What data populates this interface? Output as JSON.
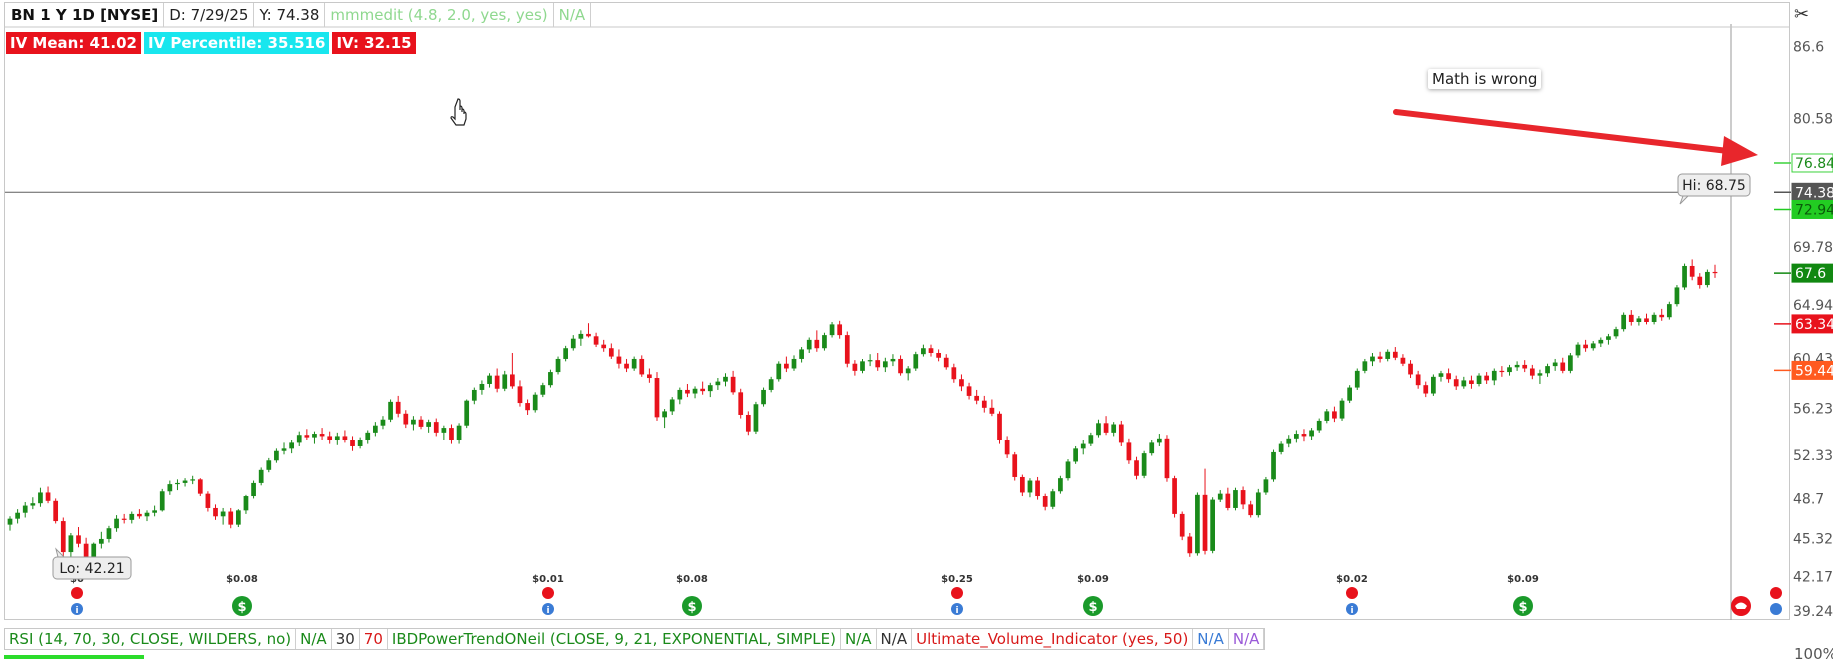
{
  "header": {
    "symbol": "BN 1 Y 1D [NYSE]",
    "date": "D: 7/29/25",
    "y": "Y: 74.38",
    "study": "mmmedit (4.8, 2.0, yes, yes)",
    "study_value": "N/A"
  },
  "badges": {
    "iv_mean": "IV Mean: 41.02",
    "iv_percentile": "IV Percentile: 35.516",
    "iv": "IV: 32.15"
  },
  "annotation": {
    "text": "Math is wrong"
  },
  "chart_data": {
    "type": "candlestick",
    "y_axis": {
      "range": [
        38.5,
        88.5
      ],
      "ticks": [
        86.6,
        80.58,
        69.78,
        64.94,
        60.43,
        56.23,
        52.33,
        48.7,
        45.32,
        42.17,
        39.24
      ]
    },
    "price_labels": [
      {
        "value": "76.84",
        "price": 76.84,
        "bg": "#ffffff",
        "fg": "#1a8a1a",
        "border": "#3bd23b"
      },
      {
        "value": "74.38",
        "price": 74.38,
        "bg": "#555555",
        "fg": "#ffffff",
        "border": "#555555"
      },
      {
        "value": "72.94",
        "price": 72.94,
        "bg": "#22cc22",
        "fg": "#0a5a0a",
        "border": "#22cc22"
      },
      {
        "value": "67.6",
        "price": 67.6,
        "bg": "#118811",
        "fg": "#ffffff",
        "border": "#118811"
      },
      {
        "value": "63.34",
        "price": 63.34,
        "bg": "#e8121c",
        "fg": "#ffffff",
        "border": "#e8121c"
      },
      {
        "value": "59.44",
        "price": 59.44,
        "bg": "#ff5a1f",
        "fg": "#ffffff",
        "border": "#ff5a1f"
      }
    ],
    "crosshair_price": 74.38,
    "hi": {
      "label": "Hi: 68.75",
      "value": 68.75
    },
    "lo": {
      "label": "Lo: 42.21",
      "value": 42.21
    },
    "dividends": [
      "$0",
      "$0.08",
      "$0.01",
      "$0.08",
      "$0.25",
      "$0.09",
      "$0.02",
      "$0.09"
    ],
    "candles": [
      [
        46.5,
        47.2,
        46.0,
        47.0
      ],
      [
        47.0,
        47.8,
        46.6,
        47.5
      ],
      [
        47.5,
        48.4,
        47.1,
        48.1
      ],
      [
        48.1,
        48.8,
        47.8,
        48.3
      ],
      [
        48.3,
        49.6,
        48.0,
        49.2
      ],
      [
        49.2,
        49.7,
        48.3,
        48.5
      ],
      [
        48.5,
        48.7,
        46.6,
        46.8
      ],
      [
        46.8,
        47.1,
        43.6,
        44.2
      ],
      [
        44.2,
        45.8,
        42.2,
        45.6
      ],
      [
        45.6,
        46.3,
        44.6,
        44.9
      ],
      [
        44.9,
        45.4,
        43.1,
        43.5
      ],
      [
        43.5,
        45.0,
        43.2,
        44.9
      ],
      [
        44.9,
        45.9,
        44.5,
        45.3
      ],
      [
        45.3,
        46.4,
        45.0,
        46.2
      ],
      [
        46.2,
        47.3,
        45.9,
        47.0
      ],
      [
        47.0,
        47.4,
        46.6,
        46.9
      ],
      [
        46.9,
        47.6,
        46.6,
        47.4
      ],
      [
        47.4,
        47.8,
        47.0,
        47.2
      ],
      [
        47.2,
        47.7,
        46.8,
        47.5
      ],
      [
        47.5,
        48.1,
        47.2,
        47.7
      ],
      [
        47.7,
        49.5,
        47.6,
        49.3
      ],
      [
        49.3,
        50.2,
        49.0,
        49.9
      ],
      [
        49.9,
        50.3,
        49.4,
        50.0
      ],
      [
        50.0,
        50.4,
        49.7,
        50.2
      ],
      [
        50.2,
        50.6,
        49.9,
        50.3
      ],
      [
        50.3,
        50.4,
        48.9,
        49.1
      ],
      [
        49.1,
        49.3,
        47.6,
        47.9
      ],
      [
        47.9,
        48.2,
        46.9,
        47.2
      ],
      [
        47.2,
        47.9,
        46.5,
        47.6
      ],
      [
        47.6,
        47.9,
        46.2,
        46.5
      ],
      [
        46.5,
        47.8,
        46.3,
        47.7
      ],
      [
        47.7,
        49.0,
        47.4,
        48.9
      ],
      [
        48.9,
        50.2,
        48.7,
        50.0
      ],
      [
        50.0,
        51.3,
        49.8,
        51.1
      ],
      [
        51.1,
        52.1,
        50.9,
        51.9
      ],
      [
        51.9,
        52.9,
        51.7,
        52.7
      ],
      [
        52.7,
        53.4,
        52.4,
        52.9
      ],
      [
        52.9,
        53.6,
        52.5,
        53.4
      ],
      [
        53.4,
        54.3,
        53.1,
        54.0
      ],
      [
        54.0,
        54.5,
        53.6,
        53.8
      ],
      [
        53.8,
        54.3,
        53.3,
        54.1
      ],
      [
        54.1,
        54.6,
        53.6,
        53.9
      ],
      [
        53.9,
        54.3,
        53.3,
        53.6
      ],
      [
        53.6,
        54.2,
        53.2,
        53.9
      ],
      [
        53.9,
        54.4,
        53.4,
        53.6
      ],
      [
        53.6,
        53.9,
        52.7,
        53.1
      ],
      [
        53.1,
        53.8,
        52.9,
        53.6
      ],
      [
        53.6,
        54.4,
        53.3,
        54.2
      ],
      [
        54.2,
        55.1,
        53.9,
        54.8
      ],
      [
        54.8,
        55.6,
        54.5,
        55.3
      ],
      [
        55.3,
        57.0,
        55.1,
        56.8
      ],
      [
        56.8,
        57.3,
        55.5,
        55.8
      ],
      [
        55.8,
        56.1,
        54.6,
        54.9
      ],
      [
        54.9,
        55.6,
        54.4,
        55.3
      ],
      [
        55.3,
        55.6,
        54.5,
        54.7
      ],
      [
        54.7,
        55.3,
        54.2,
        55.1
      ],
      [
        55.1,
        55.4,
        53.9,
        54.2
      ],
      [
        54.2,
        54.8,
        53.6,
        54.6
      ],
      [
        54.6,
        54.9,
        53.3,
        53.6
      ],
      [
        53.6,
        55.0,
        53.3,
        54.8
      ],
      [
        54.8,
        57.0,
        54.6,
        56.9
      ],
      [
        56.9,
        58.0,
        56.6,
        57.8
      ],
      [
        57.8,
        58.6,
        57.4,
        58.3
      ],
      [
        58.3,
        59.2,
        58.0,
        59.0
      ],
      [
        59.0,
        59.6,
        57.6,
        57.9
      ],
      [
        57.9,
        59.4,
        57.7,
        59.1
      ],
      [
        59.1,
        60.9,
        57.9,
        58.1
      ],
      [
        58.1,
        58.6,
        56.4,
        56.7
      ],
      [
        56.7,
        57.0,
        55.7,
        56.1
      ],
      [
        56.1,
        57.6,
        55.9,
        57.4
      ],
      [
        57.4,
        58.4,
        57.2,
        58.2
      ],
      [
        58.2,
        59.5,
        58.0,
        59.3
      ],
      [
        59.3,
        60.6,
        59.1,
        60.4
      ],
      [
        60.4,
        61.5,
        60.2,
        61.3
      ],
      [
        61.3,
        62.4,
        61.1,
        62.1
      ],
      [
        62.1,
        62.8,
        61.5,
        62.5
      ],
      [
        62.5,
        63.4,
        62.2,
        62.3
      ],
      [
        62.3,
        62.6,
        61.4,
        61.6
      ],
      [
        61.6,
        62.0,
        61.0,
        61.3
      ],
      [
        61.3,
        61.7,
        60.4,
        60.6
      ],
      [
        60.6,
        61.2,
        59.6,
        60.0
      ],
      [
        60.0,
        60.4,
        59.3,
        59.6
      ],
      [
        59.6,
        60.6,
        59.4,
        60.4
      ],
      [
        60.4,
        60.7,
        58.9,
        59.1
      ],
      [
        59.1,
        59.6,
        58.4,
        58.8
      ],
      [
        58.8,
        59.3,
        55.2,
        55.5
      ],
      [
        55.5,
        56.2,
        54.6,
        56.0
      ],
      [
        56.0,
        57.2,
        55.7,
        57.0
      ],
      [
        57.0,
        58.0,
        56.6,
        57.8
      ],
      [
        57.8,
        58.3,
        57.2,
        57.5
      ],
      [
        57.5,
        58.1,
        57.1,
        57.9
      ],
      [
        57.9,
        58.5,
        57.4,
        57.7
      ],
      [
        57.7,
        58.4,
        57.2,
        58.2
      ],
      [
        58.2,
        58.8,
        57.8,
        58.5
      ],
      [
        58.5,
        59.2,
        58.1,
        58.9
      ],
      [
        58.9,
        59.4,
        57.4,
        57.6
      ],
      [
        57.6,
        57.9,
        55.4,
        55.7
      ],
      [
        55.7,
        56.0,
        54.0,
        54.3
      ],
      [
        54.3,
        56.8,
        54.1,
        56.6
      ],
      [
        56.6,
        58.0,
        56.4,
        57.8
      ],
      [
        57.8,
        58.9,
        57.6,
        58.7
      ],
      [
        58.7,
        60.2,
        58.5,
        60.0
      ],
      [
        60.0,
        60.6,
        59.3,
        59.6
      ],
      [
        59.6,
        60.7,
        59.4,
        60.4
      ],
      [
        60.4,
        61.4,
        60.1,
        61.2
      ],
      [
        61.2,
        62.2,
        60.9,
        62.0
      ],
      [
        62.0,
        62.8,
        61.0,
        61.3
      ],
      [
        61.3,
        62.6,
        61.1,
        62.4
      ],
      [
        62.4,
        63.5,
        62.2,
        63.3
      ],
      [
        63.3,
        63.6,
        62.1,
        62.4
      ],
      [
        62.4,
        62.7,
        59.7,
        60.0
      ],
      [
        60.0,
        60.3,
        59.0,
        59.4
      ],
      [
        59.4,
        60.4,
        59.2,
        60.2
      ],
      [
        60.2,
        60.8,
        59.8,
        60.3
      ],
      [
        60.3,
        60.9,
        59.4,
        59.7
      ],
      [
        59.7,
        60.5,
        59.3,
        60.2
      ],
      [
        60.2,
        60.8,
        59.8,
        60.4
      ],
      [
        60.4,
        60.7,
        59.0,
        59.2
      ],
      [
        59.2,
        59.8,
        58.6,
        59.6
      ],
      [
        59.6,
        61.0,
        59.4,
        60.8
      ],
      [
        60.8,
        61.6,
        60.6,
        61.3
      ],
      [
        61.3,
        61.6,
        60.6,
        60.9
      ],
      [
        60.9,
        61.2,
        60.2,
        60.5
      ],
      [
        60.5,
        60.8,
        59.5,
        59.7
      ],
      [
        59.7,
        60.0,
        58.4,
        58.7
      ],
      [
        58.7,
        59.1,
        57.7,
        58.1
      ],
      [
        58.1,
        58.4,
        57.0,
        57.3
      ],
      [
        57.3,
        57.8,
        56.6,
        56.9
      ],
      [
        56.9,
        57.3,
        55.9,
        56.3
      ],
      [
        56.3,
        57.0,
        55.6,
        55.8
      ],
      [
        55.8,
        56.0,
        53.3,
        53.6
      ],
      [
        53.6,
        53.9,
        52.1,
        52.4
      ],
      [
        52.4,
        52.6,
        50.2,
        50.5
      ],
      [
        50.5,
        50.7,
        48.9,
        49.2
      ],
      [
        49.2,
        50.4,
        48.8,
        50.2
      ],
      [
        50.2,
        50.5,
        48.6,
        48.9
      ],
      [
        48.9,
        49.1,
        47.7,
        48.0
      ],
      [
        48.0,
        49.5,
        47.8,
        49.3
      ],
      [
        49.3,
        50.6,
        49.1,
        50.4
      ],
      [
        50.4,
        52.0,
        50.2,
        51.8
      ],
      [
        51.8,
        53.1,
        51.6,
        52.9
      ],
      [
        52.9,
        53.6,
        52.4,
        53.3
      ],
      [
        53.3,
        54.2,
        53.1,
        54.0
      ],
      [
        54.0,
        55.3,
        53.8,
        55.0
      ],
      [
        55.0,
        55.6,
        54.0,
        54.2
      ],
      [
        54.2,
        55.1,
        53.9,
        54.9
      ],
      [
        54.9,
        55.2,
        53.1,
        53.4
      ],
      [
        53.4,
        53.7,
        51.6,
        51.9
      ],
      [
        51.9,
        52.2,
        50.3,
        50.6
      ],
      [
        50.6,
        52.7,
        50.4,
        52.5
      ],
      [
        52.5,
        53.6,
        52.3,
        53.4
      ],
      [
        53.4,
        54.1,
        53.1,
        53.7
      ],
      [
        53.7,
        54.0,
        50.1,
        50.4
      ],
      [
        50.4,
        50.6,
        47.1,
        47.4
      ],
      [
        47.4,
        47.6,
        45.2,
        45.5
      ],
      [
        45.5,
        45.8,
        43.8,
        44.1
      ],
      [
        44.1,
        49.2,
        43.9,
        49.0
      ],
      [
        49.0,
        51.2,
        44.0,
        44.3
      ],
      [
        44.3,
        48.8,
        44.1,
        48.6
      ],
      [
        48.6,
        49.4,
        48.4,
        49.1
      ],
      [
        49.1,
        49.6,
        47.7,
        47.9
      ],
      [
        47.9,
        49.6,
        47.7,
        49.4
      ],
      [
        49.4,
        49.7,
        47.8,
        48.2
      ],
      [
        48.2,
        48.5,
        47.1,
        47.3
      ],
      [
        47.3,
        49.5,
        47.1,
        49.2
      ],
      [
        49.2,
        50.5,
        49.0,
        50.3
      ],
      [
        50.3,
        52.8,
        50.1,
        52.6
      ],
      [
        52.6,
        53.5,
        52.4,
        53.3
      ],
      [
        53.3,
        54.0,
        53.0,
        53.7
      ],
      [
        53.7,
        54.4,
        53.4,
        54.1
      ],
      [
        54.1,
        54.5,
        53.5,
        53.9
      ],
      [
        53.9,
        54.6,
        53.6,
        54.4
      ],
      [
        54.4,
        55.4,
        54.2,
        55.2
      ],
      [
        55.2,
        56.2,
        55.0,
        56.0
      ],
      [
        56.0,
        56.4,
        55.1,
        55.4
      ],
      [
        55.4,
        57.1,
        55.2,
        56.9
      ],
      [
        56.9,
        58.2,
        56.7,
        58.0
      ],
      [
        58.0,
        59.6,
        57.8,
        59.4
      ],
      [
        59.4,
        60.4,
        59.2,
        60.2
      ],
      [
        60.2,
        60.9,
        59.8,
        60.6
      ],
      [
        60.6,
        61.0,
        60.1,
        60.4
      ],
      [
        60.4,
        61.2,
        60.2,
        61.0
      ],
      [
        61.0,
        61.4,
        60.3,
        60.5
      ],
      [
        60.5,
        60.8,
        59.8,
        60.0
      ],
      [
        60.0,
        60.3,
        58.8,
        59.1
      ],
      [
        59.1,
        59.4,
        57.9,
        58.2
      ],
      [
        58.2,
        58.5,
        57.2,
        57.5
      ],
      [
        57.5,
        59.1,
        57.3,
        58.9
      ],
      [
        58.9,
        59.4,
        58.5,
        59.2
      ],
      [
        59.2,
        59.6,
        58.4,
        58.7
      ],
      [
        58.7,
        59.0,
        57.8,
        58.1
      ],
      [
        58.1,
        58.9,
        57.9,
        58.6
      ],
      [
        58.6,
        59.0,
        57.9,
        58.3
      ],
      [
        58.3,
        59.2,
        58.1,
        59.0
      ],
      [
        59.0,
        59.3,
        58.3,
        58.6
      ],
      [
        58.6,
        59.6,
        58.2,
        59.4
      ],
      [
        59.4,
        59.8,
        58.9,
        59.3
      ],
      [
        59.3,
        59.9,
        59.0,
        59.7
      ],
      [
        59.7,
        60.2,
        59.4,
        59.9
      ],
      [
        59.9,
        60.3,
        59.3,
        59.6
      ],
      [
        59.6,
        59.9,
        58.7,
        59.0
      ],
      [
        59.0,
        59.5,
        58.3,
        59.2
      ],
      [
        59.2,
        60.0,
        58.9,
        59.8
      ],
      [
        59.8,
        60.4,
        59.4,
        60.1
      ],
      [
        60.1,
        60.5,
        59.2,
        59.4
      ],
      [
        59.4,
        60.9,
        59.2,
        60.7
      ],
      [
        60.7,
        61.8,
        60.5,
        61.6
      ],
      [
        61.6,
        62.0,
        61.0,
        61.3
      ],
      [
        61.3,
        61.9,
        61.1,
        61.7
      ],
      [
        61.7,
        62.2,
        61.4,
        62.0
      ],
      [
        62.0,
        62.5,
        61.6,
        62.3
      ],
      [
        62.3,
        63.1,
        62.1,
        62.9
      ],
      [
        62.9,
        64.3,
        62.7,
        64.1
      ],
      [
        64.1,
        64.5,
        63.2,
        63.5
      ],
      [
        63.5,
        64.0,
        63.2,
        63.8
      ],
      [
        63.8,
        64.2,
        63.3,
        63.5
      ],
      [
        63.5,
        64.3,
        63.3,
        64.1
      ],
      [
        64.1,
        64.6,
        63.6,
        63.9
      ],
      [
        63.9,
        65.2,
        63.7,
        65.0
      ],
      [
        65.0,
        66.6,
        64.8,
        66.4
      ],
      [
        66.4,
        68.4,
        66.2,
        68.2
      ],
      [
        68.2,
        68.75,
        67.0,
        67.3
      ],
      [
        67.3,
        67.6,
        66.3,
        66.6
      ],
      [
        66.6,
        67.9,
        66.4,
        67.7
      ],
      [
        67.7,
        68.3,
        67.2,
        67.6
      ]
    ]
  },
  "indicators": {
    "rsi": "RSI (14, 70, 30, CLOSE, WILDERS, no)",
    "rsi_na": "N/A",
    "rsi_30": "30",
    "rsi_70": "70",
    "ibd": "IBDPowerTrendONeil (CLOSE, 9, 21, EXPONENTIAL, SIMPLE)",
    "ibd_na1": "N/A",
    "ibd_na2": "N/A",
    "uvi": "Ultimate_Volume_Indicator (yes, 50)",
    "uvi_na1": "N/A",
    "uvi_na2": "N/A",
    "pct": "100%"
  },
  "colors": {
    "up": "#1a8a1a",
    "down": "#e8121c",
    "arrow": "#e8262c"
  }
}
